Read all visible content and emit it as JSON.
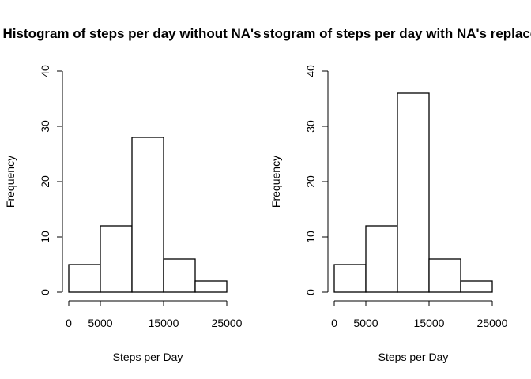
{
  "chart_data": [
    {
      "type": "bar",
      "title": "Histogram of steps per day without NA's",
      "xlabel": "Steps per Day",
      "ylabel": "Frequency",
      "bin_edges": [
        0,
        5000,
        10000,
        15000,
        20000,
        25000
      ],
      "values": [
        5,
        12,
        28,
        6,
        2
      ],
      "xlim": [
        0,
        25000
      ],
      "ylim": [
        0,
        40
      ],
      "x_ticks": [
        0,
        5000,
        15000,
        25000
      ],
      "y_ticks": [
        0,
        10,
        20,
        30,
        40
      ],
      "grid": false
    },
    {
      "type": "bar",
      "title": "Histogram of steps per day with NA's replaced",
      "xlabel": "Steps per Day",
      "ylabel": "Frequency",
      "bin_edges": [
        0,
        5000,
        10000,
        15000,
        20000,
        25000
      ],
      "values": [
        5,
        12,
        36,
        6,
        2
      ],
      "xlim": [
        0,
        25000
      ],
      "ylim": [
        0,
        40
      ],
      "x_ticks": [
        0,
        5000,
        15000,
        25000
      ],
      "y_ticks": [
        0,
        10,
        20,
        30,
        40
      ],
      "grid": false
    }
  ]
}
